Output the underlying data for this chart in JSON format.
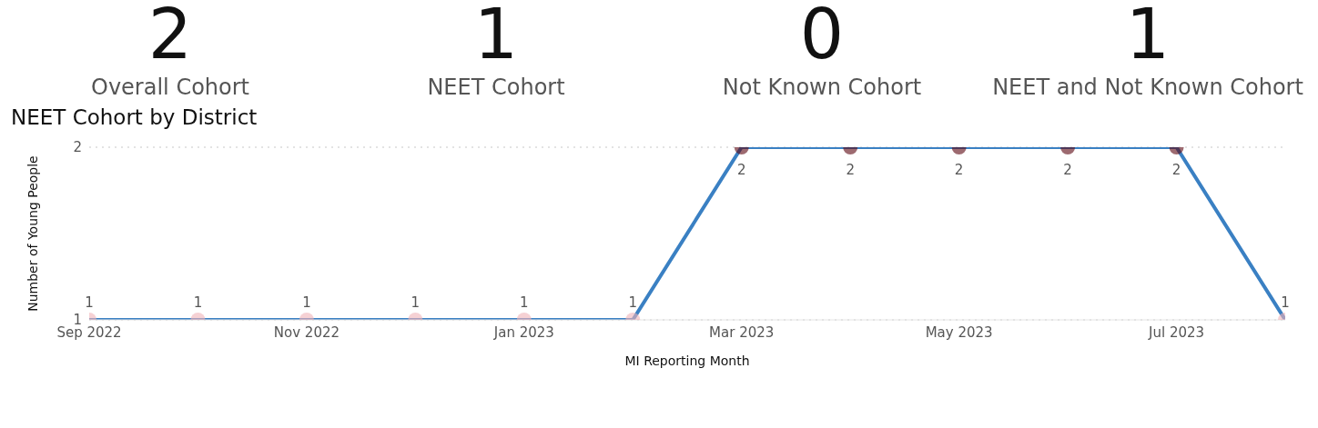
{
  "chart_data": [
    {
      "type": "other",
      "annotations": [
        "2",
        "Overall Cohort"
      ]
    },
    {
      "type": "other",
      "annotations": [
        "1",
        "NEET Cohort"
      ]
    },
    {
      "type": "other",
      "annotations": [
        "0",
        "Not Known Cohort"
      ]
    },
    {
      "type": "other",
      "annotations": [
        "1",
        "NEET and Not Known Cohort"
      ]
    },
    {
      "type": "line",
      "title": "NEET Cohort by District",
      "xlabel": "MI Reporting Month",
      "ylabel": "Number of Young People",
      "x": [
        "2022-09",
        "2022-10",
        "2022-11",
        "2022-12",
        "2023-01",
        "2023-02",
        "2023-03",
        "2023-04",
        "2023-05",
        "2023-06",
        "2023-07",
        "2023-08"
      ],
      "series": [
        {
          "color": "#3a80c3",
          "values": [
            1,
            1,
            1,
            1,
            1,
            1,
            2,
            2,
            2,
            2,
            2,
            1
          ],
          "colors": [
            "#f0b3b8",
            "#f0b3b8",
            "#f0b3b8",
            "#f0b3b8",
            "#f0b3b8",
            "#f0b3b8",
            "#5c0711",
            "#5c0711",
            "#5c0711",
            "#5c0711",
            "#5c0711",
            "#f0b3b8"
          ]
        }
      ],
      "xlim": [
        "2022-09",
        "2023-08"
      ],
      "xticks": [
        {
          "value": "2022-09",
          "label": "Sep 2022"
        },
        {
          "value": "2022-11",
          "label": "Nov 2022"
        },
        {
          "value": "2023-01",
          "label": "Jan 2023"
        },
        {
          "value": "2023-03",
          "label": "Mar 2023"
        },
        {
          "value": "2023-05",
          "label": "May 2023"
        },
        {
          "value": "2023-07",
          "label": "Jul 2023"
        }
      ],
      "ylim": [
        1,
        2
      ],
      "yticks": [
        1,
        2
      ],
      "grid": "y",
      "marker": "circle",
      "line_style": "solid",
      "data_labels": true
    }
  ]
}
